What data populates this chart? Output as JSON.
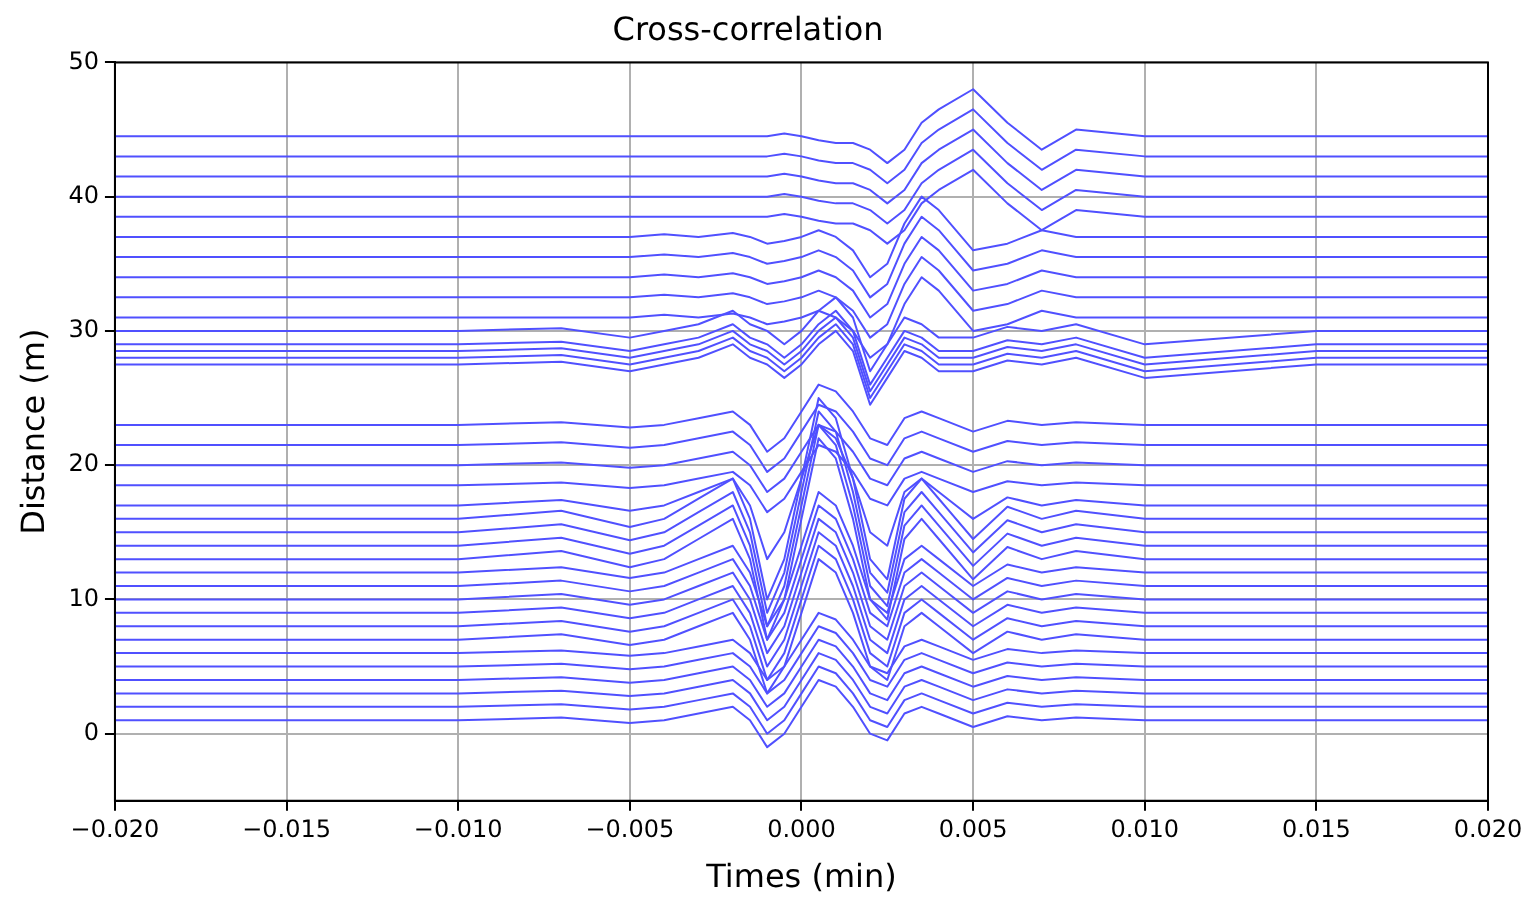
{
  "chart_data": {
    "type": "line",
    "title": "Cross-correlation",
    "xlabel": "Times (min)",
    "ylabel": "Distance (m)",
    "color": "#5050ff",
    "grid": true,
    "legend": false,
    "marker": "none",
    "line_style": "solid",
    "xlim": [
      -0.02,
      0.02
    ],
    "xticks": [
      {
        "value": -0.02,
        "label": "−0.020"
      },
      {
        "value": -0.015,
        "label": "−0.015"
      },
      {
        "value": -0.01,
        "label": "−0.010"
      },
      {
        "value": -0.005,
        "label": "−0.005"
      },
      {
        "value": 0,
        "label": "0.000"
      },
      {
        "value": 0.005,
        "label": "0.005"
      },
      {
        "value": 0.01,
        "label": "0.010"
      },
      {
        "value": 0.015,
        "label": "0.015"
      },
      {
        "value": 0.02,
        "label": "0.020"
      }
    ],
    "ylim": [
      -5,
      50
    ],
    "yticks": [
      0,
      10,
      20,
      30,
      40,
      50
    ],
    "x": [
      -0.02,
      -0.015,
      -0.01,
      -0.007,
      -0.005,
      -0.004,
      -0.003,
      -0.002,
      -0.0015,
      -0.001,
      -0.0005,
      0,
      0.0005,
      0.001,
      0.0015,
      0.002,
      0.0025,
      0.003,
      0.0035,
      0.004,
      0.005,
      0.006,
      0.007,
      0.008,
      0.01,
      0.015,
      0.02
    ],
    "series": [
      {
        "values": [
          1,
          1,
          1,
          1.2,
          0.8,
          1,
          1.5,
          2,
          1,
          -1,
          0,
          2,
          4,
          3.5,
          2,
          0,
          -0.5,
          1.5,
          2,
          1.5,
          0.5,
          1.3,
          1,
          1.2,
          1,
          1,
          1
        ]
      },
      {
        "values": [
          2,
          2,
          2,
          2.2,
          1.8,
          2,
          2.5,
          3,
          2,
          0,
          1,
          3,
          5,
          4.5,
          3,
          1,
          0.5,
          2.5,
          3,
          2.5,
          1.5,
          2.3,
          2,
          2.2,
          2,
          2,
          2
        ]
      },
      {
        "values": [
          3,
          3,
          3,
          3.2,
          2.8,
          3,
          3.5,
          4,
          3,
          1,
          2,
          4,
          6,
          5.5,
          4,
          2,
          1.5,
          3.5,
          4,
          3.5,
          2.5,
          3.3,
          3,
          3.2,
          3,
          3,
          3
        ]
      },
      {
        "values": [
          4,
          4,
          4,
          4.2,
          3.8,
          4,
          4.5,
          5,
          4,
          2,
          3,
          5,
          7,
          6.5,
          5,
          3,
          2.5,
          4.5,
          5,
          4.5,
          3.5,
          4.3,
          4,
          4.2,
          4,
          4,
          4
        ]
      },
      {
        "values": [
          5,
          5,
          5,
          5.2,
          4.8,
          5,
          5.5,
          6,
          5,
          3,
          4,
          6,
          8,
          7.5,
          6,
          4,
          3.5,
          5.5,
          6,
          5.5,
          4.5,
          5.3,
          5,
          5.2,
          5,
          5,
          5
        ]
      },
      {
        "values": [
          6,
          6,
          6,
          6.2,
          5.8,
          6,
          6.5,
          7,
          6,
          4,
          5,
          7,
          9,
          8.5,
          7,
          5,
          4.5,
          6.5,
          7,
          6.5,
          5.5,
          6.3,
          6,
          6.2,
          6,
          6,
          6
        ]
      },
      {
        "values": [
          7,
          7,
          7,
          7.4,
          6.6,
          7,
          8,
          9,
          7,
          3,
          5,
          9,
          13,
          12,
          9,
          5,
          4,
          8,
          9,
          8,
          6,
          7.6,
          7,
          7.4,
          7,
          7,
          7
        ]
      },
      {
        "values": [
          8,
          8,
          8,
          8.4,
          7.6,
          8,
          9,
          10,
          8,
          4,
          6,
          10,
          14,
          13,
          10,
          6,
          5,
          9,
          10,
          9,
          7,
          8.6,
          8,
          8.4,
          8,
          8,
          8
        ]
      },
      {
        "values": [
          9,
          9,
          9,
          9.4,
          8.6,
          9,
          10,
          11,
          9,
          5,
          7,
          11,
          15,
          14,
          11,
          7,
          6,
          10,
          11,
          10,
          8,
          9.6,
          9,
          9.4,
          9,
          9,
          9
        ]
      },
      {
        "values": [
          10,
          10,
          10,
          10.4,
          9.6,
          10,
          11,
          12,
          10,
          6,
          8,
          12,
          16,
          15,
          12,
          8,
          7,
          11,
          12,
          11,
          9,
          10.6,
          10,
          10.4,
          10,
          10,
          10
        ]
      },
      {
        "values": [
          11,
          11,
          11,
          11.4,
          10.6,
          11,
          12,
          13,
          11,
          7,
          9,
          13,
          17,
          16,
          13,
          9,
          8,
          12,
          13,
          12,
          10,
          11.6,
          11,
          11.4,
          11,
          11,
          11
        ]
      },
      {
        "values": [
          12,
          12,
          12,
          12.4,
          11.6,
          12,
          13,
          14,
          12,
          8,
          10,
          14,
          18,
          17,
          14,
          10,
          9,
          13,
          14,
          13,
          11,
          12.6,
          12,
          12.4,
          12,
          12,
          12
        ]
      },
      {
        "values": [
          13,
          13,
          13,
          13.6,
          12.4,
          13,
          14.5,
          16,
          13,
          7,
          10,
          16,
          22,
          20.5,
          16,
          10,
          8.5,
          14.5,
          16,
          14.5,
          11.5,
          13.9,
          13,
          13.6,
          13,
          13,
          13
        ]
      },
      {
        "values": [
          14,
          14,
          14,
          14.6,
          13.4,
          14,
          15.5,
          17,
          14,
          8,
          11,
          17,
          23,
          21.5,
          17,
          11,
          9.5,
          15.5,
          17,
          15.5,
          12.5,
          14.9,
          14,
          14.6,
          14,
          14,
          14
        ]
      },
      {
        "values": [
          15,
          15,
          15,
          15.6,
          14.4,
          15,
          16.5,
          18,
          15,
          9,
          12,
          18,
          24,
          22.5,
          18,
          12,
          10.5,
          16.5,
          18,
          16.5,
          13.5,
          15.9,
          15,
          15.6,
          15,
          15,
          15
        ]
      },
      {
        "values": [
          16,
          16,
          16,
          16.6,
          15.4,
          16,
          17.5,
          19,
          16,
          10,
          13,
          19,
          25,
          23.5,
          19,
          13,
          11.5,
          17.5,
          19,
          17.5,
          14.5,
          16.9,
          16,
          16.6,
          16,
          16,
          16
        ]
      },
      {
        "values": [
          17,
          17,
          17,
          17.4,
          16.6,
          17,
          18,
          19,
          17,
          13,
          15,
          19,
          23,
          22,
          19,
          15,
          14,
          18,
          19,
          18,
          16,
          17.6,
          17,
          17.4,
          17,
          17,
          17
        ]
      },
      {
        "values": [
          18.5,
          18.5,
          18.5,
          18.7,
          18.3,
          18.5,
          19,
          19.5,
          18.5,
          16.5,
          17.5,
          19.5,
          21.5,
          21,
          19.5,
          17.5,
          17,
          19,
          19.5,
          19,
          18,
          18.8,
          18.5,
          18.7,
          18.5,
          18.5,
          18.5
        ]
      },
      {
        "values": [
          20,
          20,
          20,
          20.2,
          19.8,
          20,
          20.5,
          21,
          20,
          18,
          19,
          21,
          23,
          22.5,
          21,
          19,
          18.5,
          20.5,
          21,
          20.5,
          19.5,
          20.3,
          20,
          20.2,
          20,
          20,
          20
        ]
      },
      {
        "values": [
          21.5,
          21.5,
          21.5,
          21.7,
          21.3,
          21.5,
          22,
          22.5,
          21.5,
          19.5,
          20.5,
          22.5,
          24.5,
          24,
          22.5,
          20.5,
          20,
          22,
          22.5,
          22,
          21,
          21.8,
          21.5,
          21.7,
          21.5,
          21.5,
          21.5
        ]
      },
      {
        "values": [
          23,
          23,
          23,
          23.2,
          22.8,
          23,
          23.5,
          24,
          23,
          21,
          22,
          24,
          26,
          25.5,
          24,
          22,
          21.5,
          23.5,
          24,
          23.5,
          22.5,
          23.3,
          23,
          23.2,
          23,
          23,
          23
        ]
      },
      {
        "values": [
          27.5,
          27.5,
          27.5,
          27.7,
          27,
          27.5,
          28,
          29,
          28,
          27.5,
          26.5,
          27.5,
          29,
          30,
          28.5,
          24.5,
          26.5,
          28.5,
          28,
          27,
          27,
          27.8,
          27.5,
          28,
          26.5,
          27.5,
          27.5
        ]
      },
      {
        "values": [
          28,
          28,
          28,
          28.2,
          27.5,
          28,
          28.5,
          29.5,
          28.5,
          28,
          27,
          28,
          29.5,
          30.5,
          29,
          25,
          27,
          29,
          28.5,
          27.5,
          27.5,
          28.3,
          28,
          28.5,
          27,
          28,
          28
        ]
      },
      {
        "values": [
          28.5,
          28.5,
          28.5,
          28.7,
          28,
          28.5,
          29,
          30,
          29,
          28.5,
          27.5,
          28.5,
          30,
          31,
          29.5,
          25.5,
          27.5,
          29.5,
          29,
          28,
          28,
          28.8,
          28.5,
          29,
          27.5,
          28.5,
          28.5
        ]
      },
      {
        "values": [
          29,
          29,
          29,
          29.2,
          28.5,
          29,
          29.5,
          30.5,
          29.5,
          29,
          28,
          29,
          30.5,
          31.5,
          30,
          26,
          28,
          30,
          29.5,
          28.5,
          28.5,
          29.3,
          29,
          29.5,
          28,
          29,
          29
        ]
      },
      {
        "values": [
          30,
          30,
          30,
          30.2,
          29.5,
          30,
          30.5,
          31.5,
          30.5,
          30,
          29,
          30,
          31.5,
          32.5,
          31,
          27,
          29,
          31,
          30.5,
          29.5,
          29.5,
          30.3,
          30,
          30.5,
          29,
          30,
          30
        ]
      },
      {
        "values": [
          31,
          31,
          31,
          31,
          31,
          31.2,
          31,
          31.3,
          31,
          30.5,
          30.7,
          31,
          31.5,
          31,
          30,
          28,
          29,
          32,
          34,
          33,
          30,
          30.5,
          31.5,
          31,
          31,
          31,
          31
        ]
      },
      {
        "values": [
          32.5,
          32.5,
          32.5,
          32.5,
          32.5,
          32.7,
          32.5,
          32.8,
          32.5,
          32,
          32.2,
          32.5,
          33,
          32.5,
          31.5,
          29.5,
          30.5,
          33.5,
          35.5,
          34.5,
          31.5,
          32,
          33,
          32.5,
          32.5,
          32.5,
          32.5
        ]
      },
      {
        "values": [
          34,
          34,
          34,
          34,
          34,
          34.2,
          34,
          34.3,
          34,
          33.5,
          33.7,
          34,
          34.5,
          34,
          33,
          31,
          32,
          35,
          37,
          36,
          33,
          33.5,
          34.5,
          34,
          34,
          34,
          34
        ]
      },
      {
        "values": [
          35.5,
          35.5,
          35.5,
          35.5,
          35.5,
          35.7,
          35.5,
          35.8,
          35.5,
          35,
          35.2,
          35.5,
          36,
          35.5,
          34.5,
          32.5,
          33.5,
          36.5,
          38.5,
          37.5,
          34.5,
          35,
          36,
          35.5,
          35.5,
          35.5,
          35.5
        ]
      },
      {
        "values": [
          37,
          37,
          37,
          37,
          37,
          37.2,
          37,
          37.3,
          37,
          36.5,
          36.7,
          37,
          37.5,
          37,
          36,
          34,
          35,
          38,
          40,
          39,
          36,
          36.5,
          37.5,
          37,
          37,
          37,
          37
        ]
      },
      {
        "values": [
          38.5,
          38.5,
          38.5,
          38.5,
          38.5,
          38.5,
          38.5,
          38.5,
          38.5,
          38.5,
          38.7,
          38.5,
          38.2,
          38,
          38,
          37.5,
          36.5,
          37.5,
          39.5,
          40.5,
          42,
          39.5,
          37.5,
          39,
          38.5,
          38.5,
          38.5
        ]
      },
      {
        "values": [
          40,
          40,
          40,
          40,
          40,
          40,
          40,
          40,
          40,
          40,
          40.2,
          40,
          39.7,
          39.5,
          39.5,
          39,
          38,
          39,
          41,
          42,
          43.5,
          41,
          39,
          40.5,
          40,
          40,
          40
        ]
      },
      {
        "values": [
          41.5,
          41.5,
          41.5,
          41.5,
          41.5,
          41.5,
          41.5,
          41.5,
          41.5,
          41.5,
          41.7,
          41.5,
          41.2,
          41,
          41,
          40.5,
          39.5,
          40.5,
          42.5,
          43.5,
          45,
          42.5,
          40.5,
          42,
          41.5,
          41.5,
          41.5
        ]
      },
      {
        "values": [
          43,
          43,
          43,
          43,
          43,
          43,
          43,
          43,
          43,
          43,
          43.2,
          43,
          42.7,
          42.5,
          42.5,
          42,
          41,
          42,
          44,
          45,
          46.5,
          44,
          42,
          43.5,
          43,
          43,
          43
        ]
      },
      {
        "values": [
          44.5,
          44.5,
          44.5,
          44.5,
          44.5,
          44.5,
          44.5,
          44.5,
          44.5,
          44.5,
          44.7,
          44.5,
          44.2,
          44,
          44,
          43.5,
          42.5,
          43.5,
          45.5,
          46.5,
          48,
          45.5,
          43.5,
          45,
          44.5,
          44.5,
          44.5
        ]
      }
    ]
  }
}
